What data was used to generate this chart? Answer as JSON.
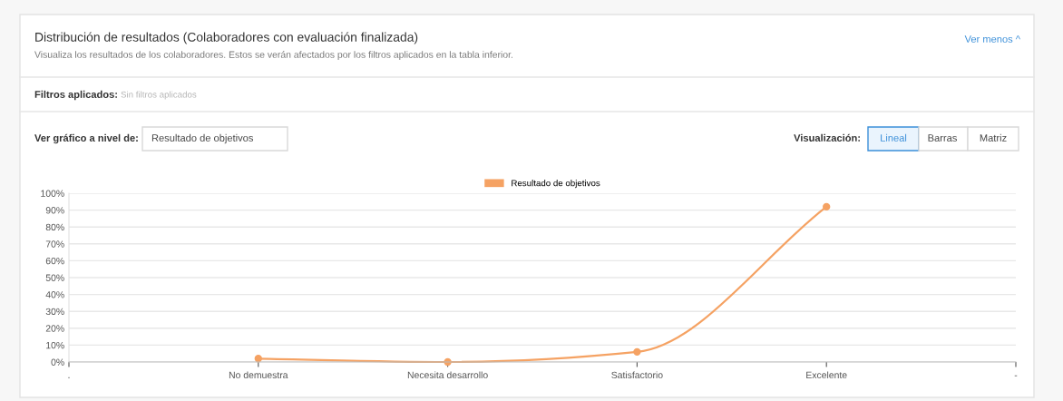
{
  "chart_data": {
    "type": "line",
    "title": "Distribución de resultados (Colaboradores con evaluación finalizada)",
    "subtitle": "Visualiza los resultados de los colaboradores. Estos se verán afectados por los filtros aplicados en la tabla inferior.",
    "annotations": [
      "Ver menos ^",
      "Filtros aplicados:",
      "Sin filtros aplicados",
      "Ver gráfico a nivel de:",
      "Resultado de objetivos",
      "Visualización:",
      "Lineal",
      "Barras",
      "Matriz"
    ],
    "categories": [
      ".",
      "No demuestra",
      "Necesita desarrollo",
      "Satisfactorio",
      "Excelente",
      "-"
    ],
    "series": [
      {
        "name": "Resultado de objetivos",
        "color": "#f5a263",
        "values": [
          null,
          2,
          0,
          6,
          92,
          null
        ]
      }
    ],
    "ylim": [
      0,
      100
    ],
    "yticks": [
      {
        "value": 0,
        "label": "0%"
      },
      {
        "value": 10,
        "label": "10%"
      },
      {
        "value": 20,
        "label": "20%"
      },
      {
        "value": 30,
        "label": "30%"
      },
      {
        "value": 40,
        "label": "40%"
      },
      {
        "value": 50,
        "label": "50%"
      },
      {
        "value": 60,
        "label": "60%"
      },
      {
        "value": 70,
        "label": "70%"
      },
      {
        "value": 80,
        "label": "80%"
      },
      {
        "value": 90,
        "label": "90%"
      },
      {
        "value": 100,
        "label": "100%"
      }
    ],
    "grid": "y",
    "legend": "top",
    "marker": "circle",
    "line_style": "solid"
  }
}
